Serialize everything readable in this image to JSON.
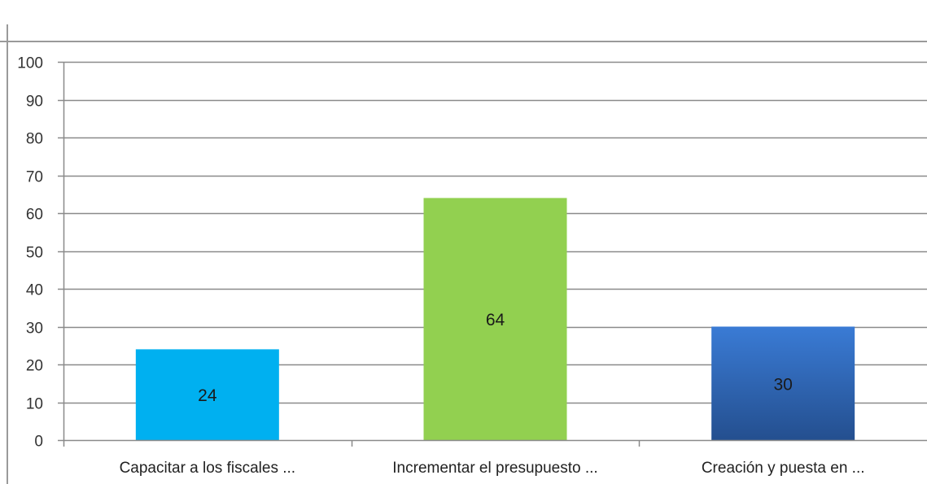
{
  "chart_data": {
    "type": "bar",
    "title": "",
    "xlabel": "",
    "ylabel": "",
    "categories": [
      "Capacitar a los fiscales ...",
      "Incrementar el presupuesto ...",
      "Creación y puesta en ..."
    ],
    "values": [
      24,
      64,
      30
    ],
    "data_labels": [
      "24",
      "64",
      "30"
    ],
    "bar_colors": [
      "#00b0f0",
      "#92d050",
      "#2e64b0"
    ],
    "ylim": [
      0,
      100
    ],
    "yticks": [
      0,
      10,
      20,
      30,
      40,
      50,
      60,
      70,
      80,
      90,
      100
    ],
    "ytick_labels": [
      "0",
      "10",
      "20",
      "30",
      "40",
      "50",
      "60",
      "70",
      "80",
      "90",
      "100"
    ],
    "grid": true,
    "legend": "none",
    "colors": {
      "gridline": "#8a8a8a",
      "axis": "#8a8a8a",
      "frame": "#9a9a9a",
      "background": "#ffffff"
    }
  }
}
